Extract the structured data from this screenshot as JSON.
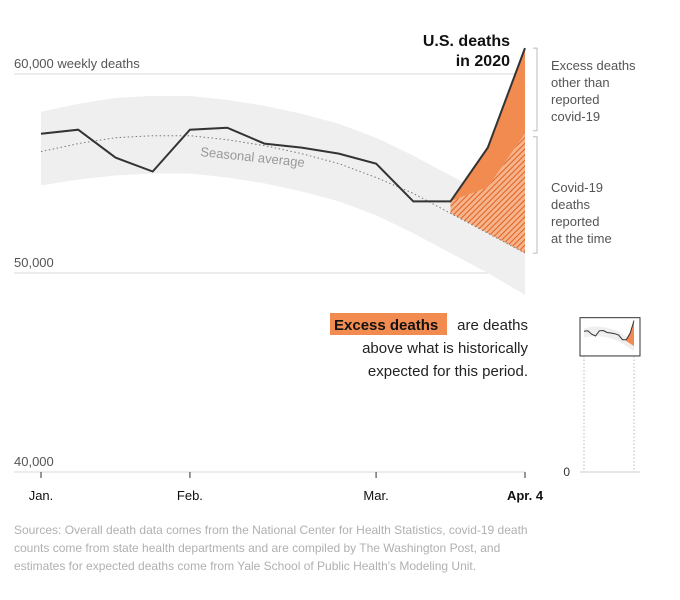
{
  "chart_data": {
    "type": "line",
    "title": "U.S. deaths in 2020",
    "title_lines": [
      "U.S. deaths",
      "in 2020"
    ],
    "ylabel": "weekly deaths",
    "ylim": [
      40000,
      61500
    ],
    "y_ticks": [
      {
        "value": 60000,
        "label": "60,000 weekly deaths"
      },
      {
        "value": 50000,
        "label": "50,000"
      },
      {
        "value": 40000,
        "label": "40,000"
      }
    ],
    "x_ticks": [
      {
        "week": 0,
        "label": "Jan."
      },
      {
        "week": 4,
        "label": "Feb."
      },
      {
        "week": 9,
        "label": "Mar."
      },
      {
        "week": 13,
        "label": "Apr. 4",
        "bold": true
      }
    ],
    "weeks": [
      0,
      1,
      2,
      3,
      4,
      5,
      6,
      7,
      8,
      9,
      10,
      11,
      12,
      13
    ],
    "series": [
      {
        "name": "U.S. deaths 2020",
        "values": [
          57000,
          57200,
          55800,
          55100,
          57200,
          57300,
          56500,
          56300,
          56000,
          55500,
          53600,
          53600,
          56300,
          61300
        ]
      },
      {
        "name": "Seasonal average",
        "values": [
          56100,
          56500,
          56800,
          56900,
          56900,
          56700,
          56400,
          56000,
          55500,
          54800,
          54000,
          53000,
          52000,
          51000
        ]
      },
      {
        "name": "Range upper",
        "values": [
          58100,
          58500,
          58800,
          58900,
          58900,
          58700,
          58400,
          58000,
          57500,
          56800,
          55900,
          54900,
          53900,
          52800
        ]
      },
      {
        "name": "Range lower",
        "values": [
          54400,
          54700,
          54900,
          55000,
          55000,
          54800,
          54500,
          54100,
          53600,
          52900,
          52000,
          51000,
          50000,
          48900
        ]
      },
      {
        "name": "Expected plus reported covid-19",
        "values": [
          null,
          null,
          null,
          null,
          null,
          null,
          null,
          null,
          null,
          null,
          null,
          53600,
          54300,
          57000
        ]
      }
    ],
    "excess_start_week": 11,
    "seasonal_label": "Seasonal average",
    "annotations": {
      "excess_other": [
        "Excess deaths",
        "other than",
        "reported",
        "covid-19"
      ],
      "covid_reported": [
        "Covid-19",
        "deaths",
        "reported",
        "at the time"
      ]
    },
    "legend": {
      "highlight": "Excess deaths",
      "line1_rest": "are deaths",
      "line2": "above what is historically",
      "line3": "expected for this period."
    },
    "mini_chart": {
      "zero_label": "0",
      "ylim": [
        0,
        61500
      ]
    }
  },
  "colors": {
    "line": "#333333",
    "excess": "#f28b50",
    "covid_hatch": "#ea6b2a",
    "band": "#efefef",
    "grid": "#d9d9d9",
    "seasonal": "#777777"
  },
  "footer": {
    "sources": "Sources: Overall death data comes from the National Center for Health Statistics, covid-19 death counts come from state health departments and are compiled by The Washington Post, and estimates for expected deaths come from Yale School of Public Health's Modeling Unit."
  }
}
